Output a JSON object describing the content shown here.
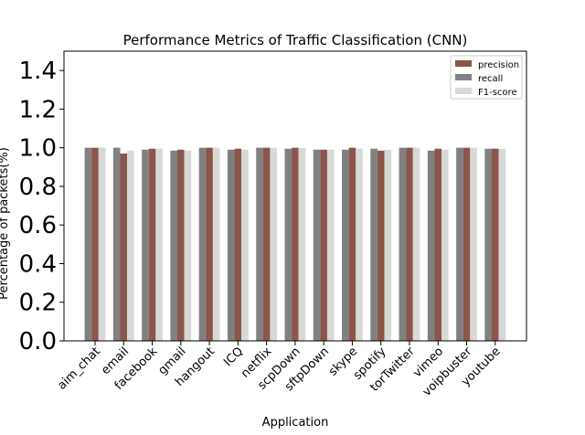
{
  "chart_data": {
    "type": "bar",
    "title": "Performance Metrics of Traffic Classification (CNN)",
    "xlabel": "Application",
    "ylabel": "Percentage of packets(%)",
    "ylim": [
      0,
      1.5
    ],
    "yticks": [
      "0.0",
      "0.2",
      "0.4",
      "0.6",
      "0.8",
      "1.0",
      "1.2",
      "1.4"
    ],
    "categories": [
      "aim_chat",
      "email",
      "facebook",
      "gmail",
      "hangout",
      "ICQ",
      "netflix",
      "scpDown",
      "sftpDown",
      "skype",
      "spotify",
      "torTwitter",
      "vimeo",
      "voipbuster",
      "youtube"
    ],
    "series": [
      {
        "name": "recall",
        "color": "#808080",
        "values": [
          1.0,
          1.0,
          0.99,
          0.985,
          1.0,
          0.99,
          1.0,
          0.995,
          0.99,
          0.99,
          0.995,
          1.0,
          0.985,
          1.0,
          0.995
        ]
      },
      {
        "name": "precision",
        "color": "#8b554b",
        "values": [
          1.0,
          0.97,
          0.995,
          0.99,
          1.0,
          0.995,
          1.0,
          1.0,
          0.99,
          1.0,
          0.985,
          1.0,
          0.995,
          1.0,
          0.995
        ]
      },
      {
        "name": "F1-score",
        "color": "#d8d9d4",
        "values": [
          1.0,
          0.985,
          0.995,
          0.985,
          1.0,
          0.99,
          1.0,
          0.998,
          0.99,
          0.995,
          0.99,
          1.0,
          0.99,
          1.0,
          0.995
        ]
      }
    ],
    "legend": {
      "position": "top-right",
      "order": [
        "precision",
        "recall",
        "F1-score"
      ]
    },
    "grid": false
  }
}
